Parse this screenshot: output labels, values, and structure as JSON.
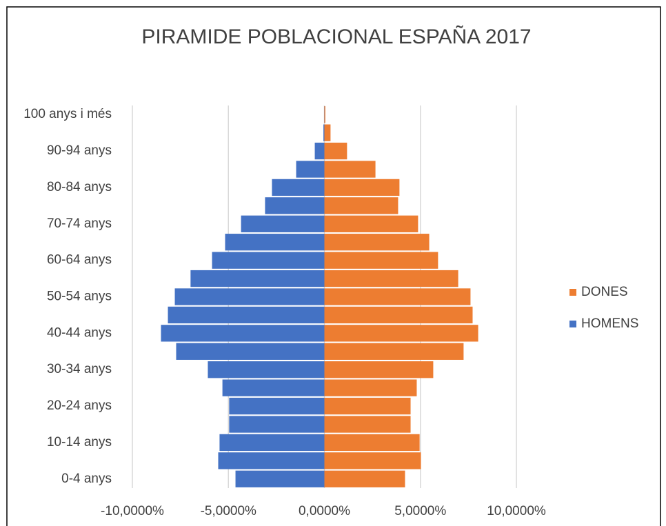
{
  "chart_data": {
    "type": "bar",
    "orientation": "horizontal",
    "stacked": true,
    "title": "PIRAMIDE POBLACIONAL ESPAÑA 2017",
    "categories": [
      "0-4 anys",
      null,
      "10-14 anys",
      null,
      "20-24 anys",
      null,
      "30-34 anys",
      null,
      "40-44 anys",
      null,
      "50-54 anys",
      null,
      "60-64 anys",
      null,
      "70-74 anys",
      null,
      "80-84 anys",
      null,
      "90-94 anys",
      null,
      "100 anys i més"
    ],
    "series": [
      {
        "name": "DONES",
        "color": "#ed7d31",
        "values": [
          4.2,
          5.03,
          4.96,
          4.49,
          4.49,
          4.81,
          5.67,
          7.25,
          8.01,
          7.72,
          7.61,
          6.97,
          5.92,
          5.46,
          4.88,
          3.84,
          3.91,
          2.66,
          1.18,
          0.32,
          0.05
        ]
      },
      {
        "name": "HOMENS",
        "color": "#4472c4",
        "values": [
          -4.63,
          -5.53,
          -5.46,
          -4.96,
          -4.96,
          -5.31,
          -6.07,
          -7.72,
          -8.51,
          -8.15,
          -7.79,
          -6.97,
          -5.85,
          -5.17,
          -4.34,
          -3.09,
          -2.73,
          -1.47,
          -0.5,
          -0.05,
          -0.01
        ]
      }
    ],
    "xlim": [
      -10,
      10
    ],
    "xticks": [
      {
        "value": -10,
        "label": "-10,0000%"
      },
      {
        "value": -5,
        "label": "-5,0000%"
      },
      {
        "value": 0,
        "label": "0,0000%"
      },
      {
        "value": 5,
        "label": "5,0000%"
      },
      {
        "value": 10,
        "label": "10,0000%"
      }
    ],
    "grid": true,
    "legend": "right"
  }
}
